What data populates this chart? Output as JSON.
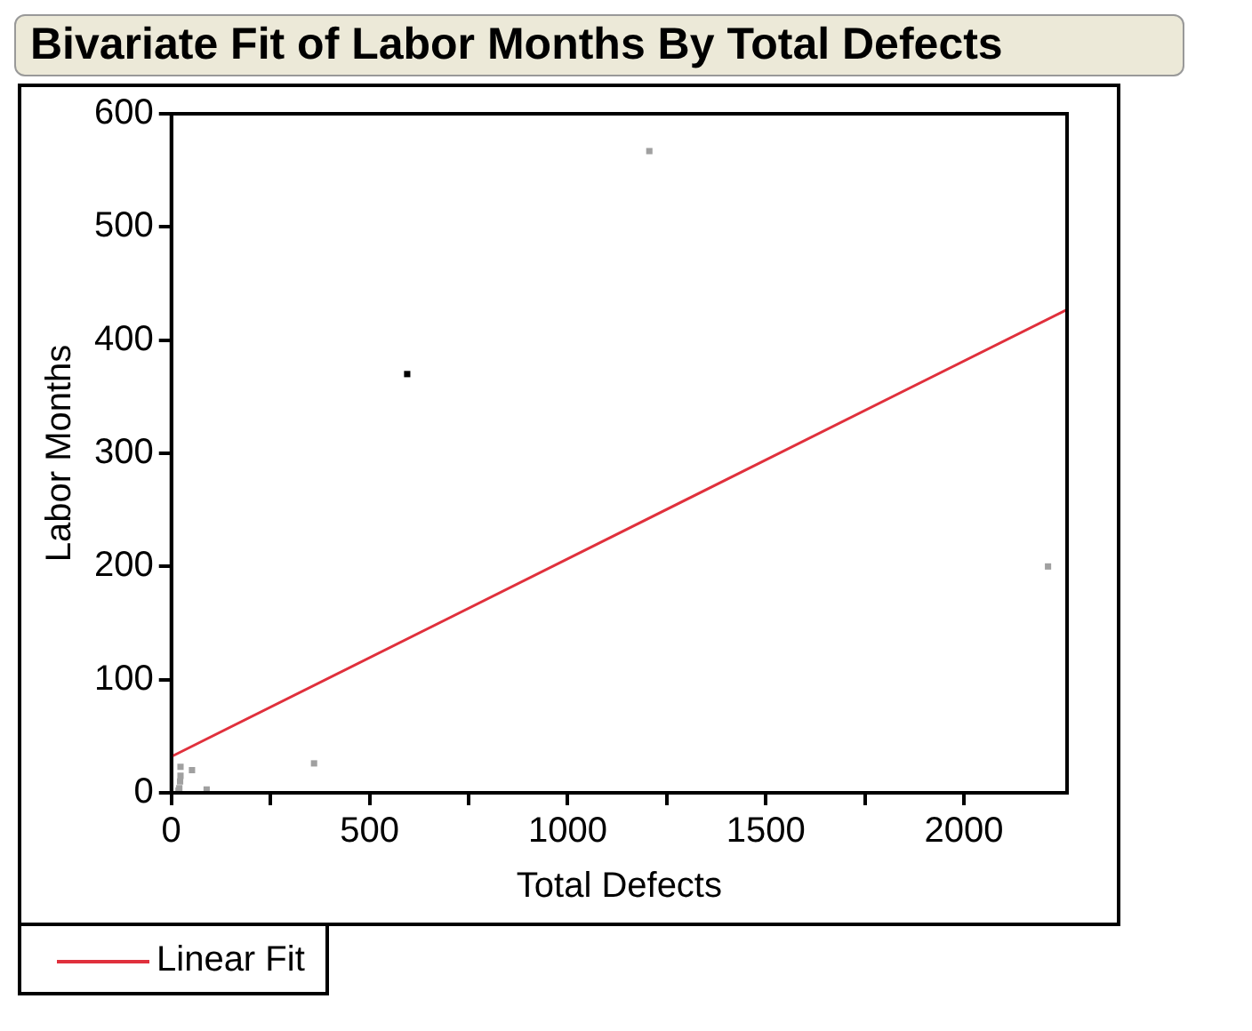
{
  "chart_data": {
    "type": "scatter",
    "title": "Bivariate Fit of Labor Months By Total Defects",
    "xlabel": "Total Defects",
    "ylabel": "Labor Months",
    "xlim": [
      0,
      2260
    ],
    "ylim": [
      0,
      600
    ],
    "xticks": [
      0,
      {
        "value": 250,
        "label": null
      },
      500,
      {
        "value": 750,
        "label": null
      },
      1000,
      {
        "value": 1250,
        "label": null
      },
      1500,
      {
        "value": 1750,
        "label": null
      },
      2000
    ],
    "yticks": [
      0,
      100,
      200,
      300,
      400,
      500,
      600
    ],
    "grid": false,
    "legend": "bottom left",
    "marker": "square",
    "series": [
      {
        "x": [
          1206,
          595,
          2212,
          360,
          52,
          89,
          23,
          23,
          22,
          20,
          18
        ],
        "values": [
          567,
          370,
          200,
          26,
          20,
          3,
          23,
          15,
          10,
          4,
          2
        ],
        "colors": [
          "#a0a0a0",
          "#000000",
          "#a0a0a0",
          "#a0a0a0",
          "#a0a0a0",
          "#a0a0a0",
          "#a0a0a0",
          "#a0a0a0",
          "#a0a0a0",
          "#a0a0a0",
          "#a0a0a0"
        ]
      },
      {
        "type": "line",
        "name": "Linear Fit",
        "color": "#e0303c",
        "x": [
          0,
          2260
        ],
        "values": [
          32,
          427
        ],
        "line_style": "solid",
        "marker": "none"
      }
    ]
  }
}
